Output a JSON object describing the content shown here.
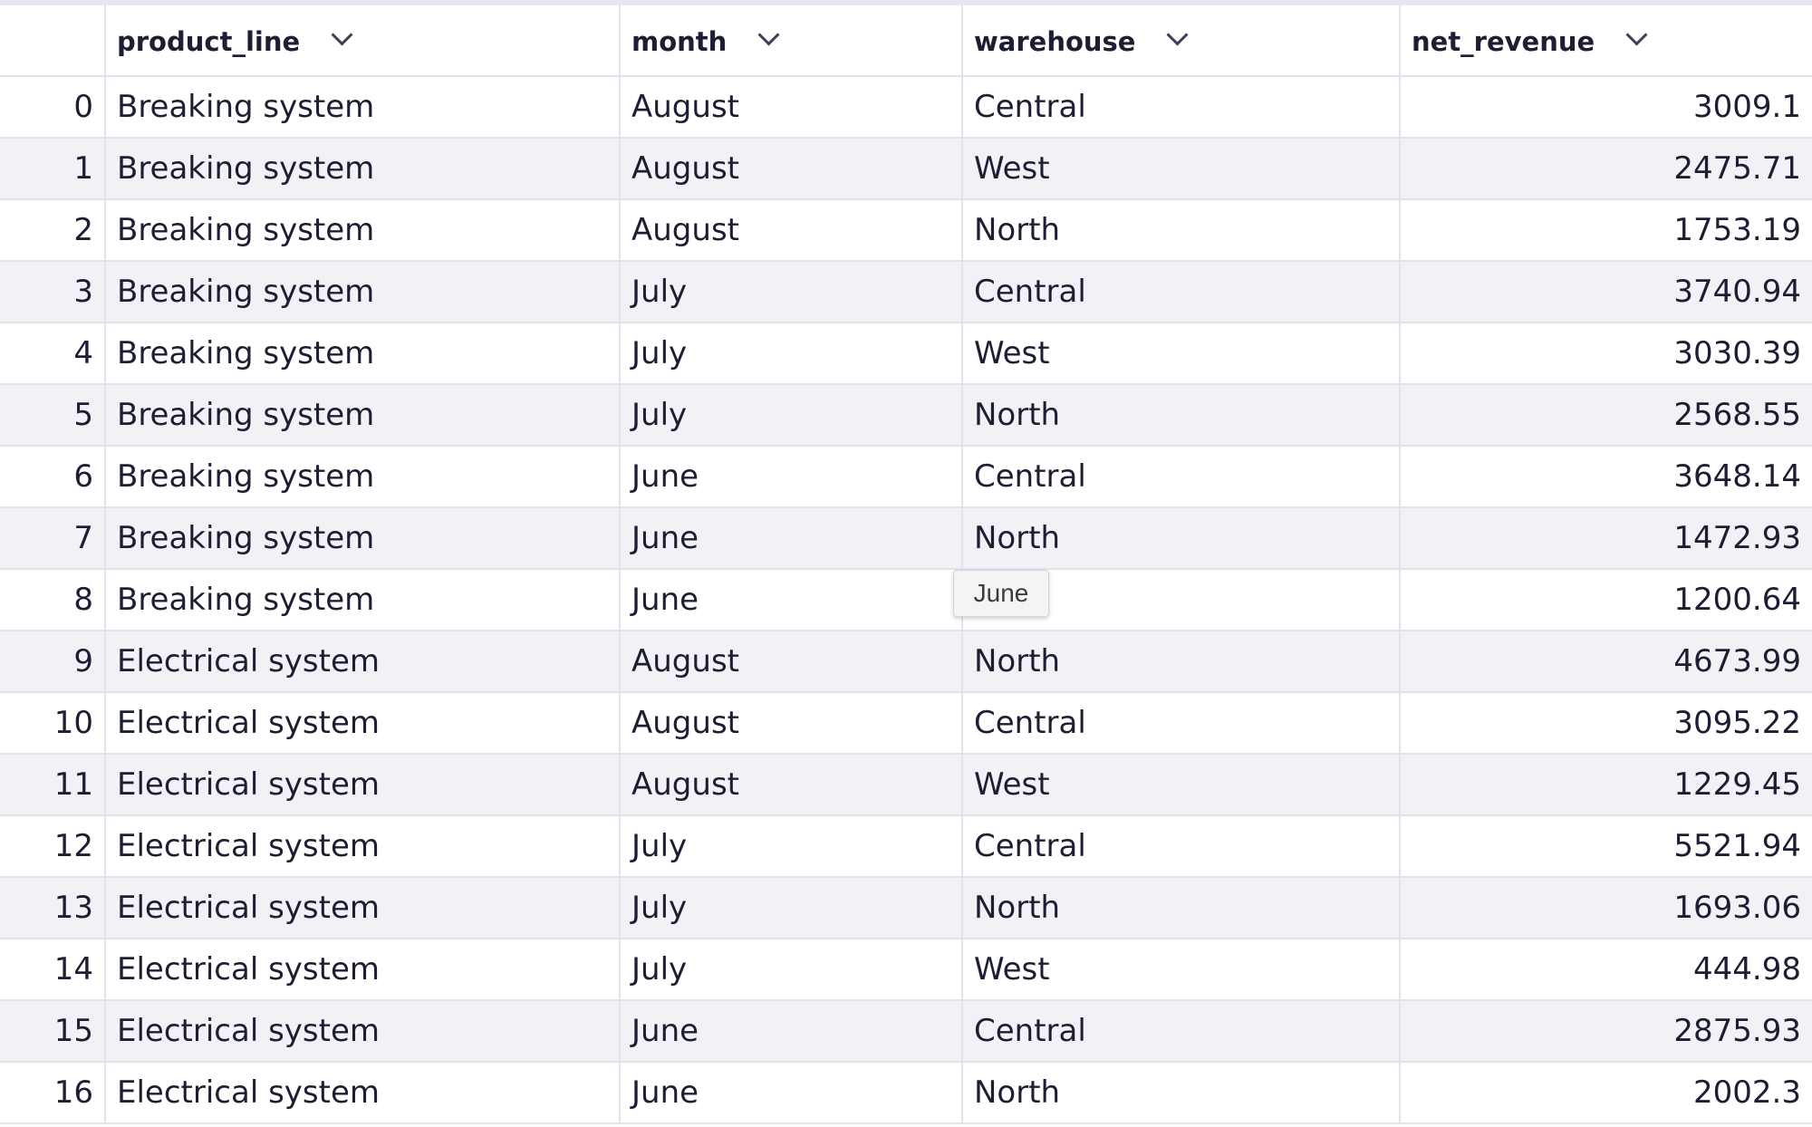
{
  "columns": [
    {
      "key": "index",
      "label": ""
    },
    {
      "key": "product_line",
      "label": "product_line"
    },
    {
      "key": "month",
      "label": "month"
    },
    {
      "key": "warehouse",
      "label": "warehouse"
    },
    {
      "key": "net_revenue",
      "label": "net_revenue"
    }
  ],
  "rows": [
    {
      "index": "0",
      "product_line": "Breaking system",
      "month": "August",
      "warehouse": "Central",
      "net_revenue": "3009.1"
    },
    {
      "index": "1",
      "product_line": "Breaking system",
      "month": "August",
      "warehouse": "West",
      "net_revenue": "2475.71"
    },
    {
      "index": "2",
      "product_line": "Breaking system",
      "month": "August",
      "warehouse": "North",
      "net_revenue": "1753.19"
    },
    {
      "index": "3",
      "product_line": "Breaking system",
      "month": "July",
      "warehouse": "Central",
      "net_revenue": "3740.94"
    },
    {
      "index": "4",
      "product_line": "Breaking system",
      "month": "July",
      "warehouse": "West",
      "net_revenue": "3030.39"
    },
    {
      "index": "5",
      "product_line": "Breaking system",
      "month": "July",
      "warehouse": "North",
      "net_revenue": "2568.55"
    },
    {
      "index": "6",
      "product_line": "Breaking system",
      "month": "June",
      "warehouse": "Central",
      "net_revenue": "3648.14"
    },
    {
      "index": "7",
      "product_line": "Breaking system",
      "month": "June",
      "warehouse": "North",
      "net_revenue": "1472.93"
    },
    {
      "index": "8",
      "product_line": "Breaking system",
      "month": "June",
      "warehouse": "",
      "net_revenue": "1200.64"
    },
    {
      "index": "9",
      "product_line": "Electrical system",
      "month": "August",
      "warehouse": "North",
      "net_revenue": "4673.99"
    },
    {
      "index": "10",
      "product_line": "Electrical system",
      "month": "August",
      "warehouse": "Central",
      "net_revenue": "3095.22"
    },
    {
      "index": "11",
      "product_line": "Electrical system",
      "month": "August",
      "warehouse": "West",
      "net_revenue": "1229.45"
    },
    {
      "index": "12",
      "product_line": "Electrical system",
      "month": "July",
      "warehouse": "Central",
      "net_revenue": "5521.94"
    },
    {
      "index": "13",
      "product_line": "Electrical system",
      "month": "July",
      "warehouse": "North",
      "net_revenue": "1693.06"
    },
    {
      "index": "14",
      "product_line": "Electrical system",
      "month": "July",
      "warehouse": "West",
      "net_revenue": "444.98"
    },
    {
      "index": "15",
      "product_line": "Electrical system",
      "month": "June",
      "warehouse": "Central",
      "net_revenue": "2875.93"
    },
    {
      "index": "16",
      "product_line": "Electrical system",
      "month": "June",
      "warehouse": "North",
      "net_revenue": "2002.3"
    }
  ],
  "tooltip": {
    "text": "June"
  },
  "icons": {
    "column_menu": "chevron-down-icon"
  },
  "colors": {
    "text": "#1c1f33",
    "index_text": "#565a70",
    "stripe": "#f2f2f6",
    "border": "#e2e3ec",
    "top_strip": "#e6e7ee"
  }
}
